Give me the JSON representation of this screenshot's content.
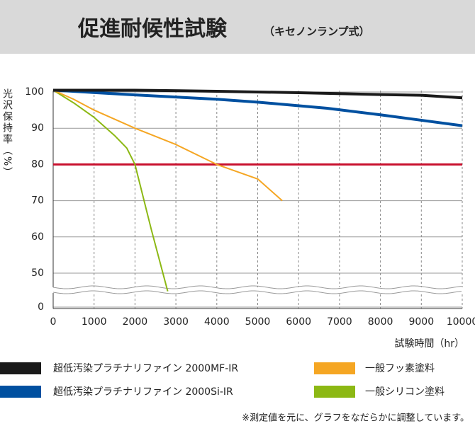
{
  "chart_data": {
    "type": "line",
    "title": "促進耐候性試験",
    "subtitle": "（キセノンランプ式）",
    "y_label": "光沢保持率（%）",
    "x_label": "試験時間（hr）",
    "note": "※測定値を元に、グラフをなだらかに調整しています。",
    "xlim": [
      0,
      10000
    ],
    "xticks": [
      0,
      1000,
      2000,
      3000,
      4000,
      5000,
      6000,
      7000,
      8000,
      9000,
      10000
    ],
    "ylim": [
      0,
      100
    ],
    "yticks": [
      0,
      50,
      60,
      70,
      80,
      90,
      100
    ],
    "axis_break": true,
    "grid": true,
    "reference_line": {
      "value": 80,
      "color": "#c8102e"
    },
    "series": [
      {
        "name": "超低汚染プラチナリファイン 2000MF-IR",
        "color": "#1a1a1a",
        "x": [
          0,
          2000,
          4000,
          6000,
          8000,
          9000,
          10000
        ],
        "values": [
          100.5,
          100.5,
          100.2,
          99.8,
          99.3,
          99.1,
          98.4
        ]
      },
      {
        "name": "超低汚染プラチナリファイン 2000Si-IR",
        "color": "#0050a0",
        "x": [
          0,
          2000,
          4000,
          5000,
          6700,
          8000,
          9000,
          10000
        ],
        "values": [
          100.5,
          99.2,
          98,
          97.2,
          95.5,
          93.7,
          92.2,
          90.7
        ]
      },
      {
        "name": "一般フッ素塗料",
        "color": "#f5a623",
        "x": [
          0,
          500,
          1000,
          2000,
          3000,
          4000,
          5000,
          5600
        ],
        "values": [
          100.5,
          98,
          95,
          90,
          85.5,
          80,
          76,
          70
        ]
      },
      {
        "name": "一般シリコン塗料",
        "color": "#8cb814",
        "x": [
          0,
          500,
          1000,
          1500,
          1800,
          2000,
          2400,
          2800
        ],
        "values": [
          100.5,
          97,
          93,
          88,
          84.5,
          80,
          62,
          45
        ]
      }
    ]
  }
}
